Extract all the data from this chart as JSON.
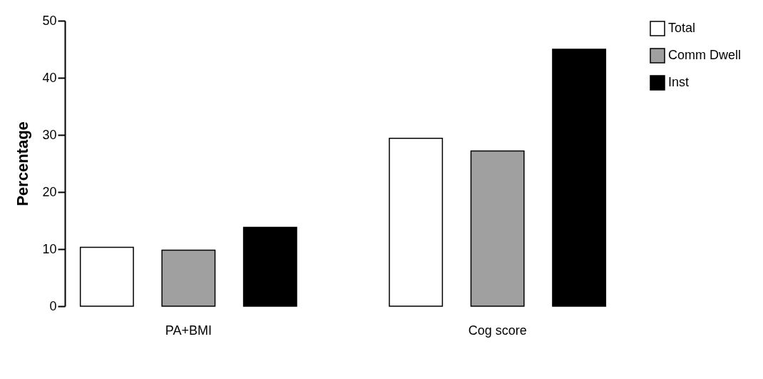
{
  "chart_data": {
    "type": "bar",
    "ylabel": "Percentage",
    "categories": [
      "PA+BMI",
      "Cog score"
    ],
    "series": [
      {
        "name": "Total",
        "color": "#ffffff",
        "values": [
          10.3,
          29.4
        ]
      },
      {
        "name": "Comm Dwell",
        "color": "#a0a0a0",
        "values": [
          9.8,
          27.2
        ]
      },
      {
        "name": "Inst",
        "color": "#000000",
        "values": [
          13.8,
          45.0
        ]
      }
    ],
    "ylim": [
      0,
      50
    ],
    "yticks": [
      0,
      10,
      20,
      30,
      40,
      50
    ],
    "grid": false,
    "legend": "top right"
  }
}
